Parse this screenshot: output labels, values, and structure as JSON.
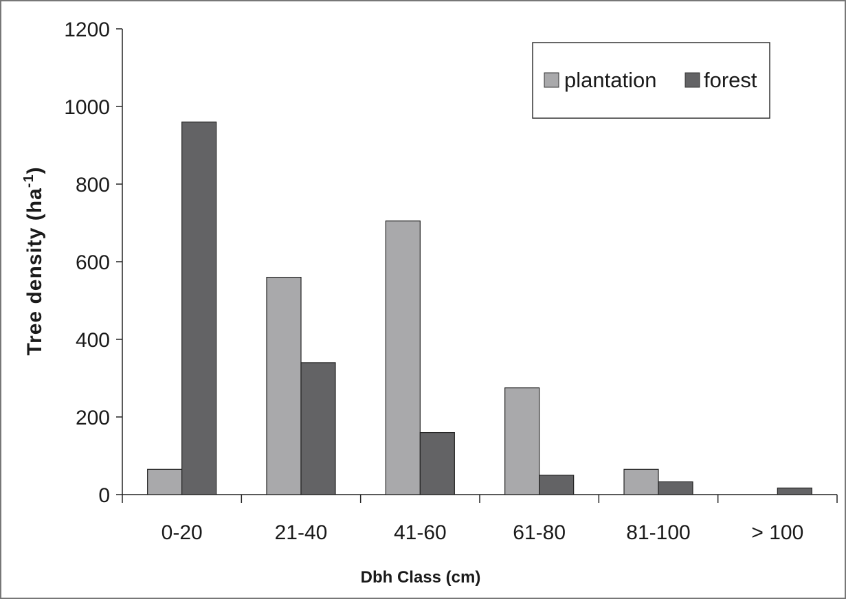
{
  "chart_data": {
    "type": "bar",
    "title": "",
    "xlabel": "Dbh  Class (cm)",
    "ylabel": {
      "main": "Tree density  (ha",
      "superscript": "-1",
      "close": ")"
    },
    "categories": [
      "0-20",
      "21-40",
      "41-60",
      "61-80",
      "81-100",
      "> 100"
    ],
    "series": [
      {
        "name": "plantation",
        "color": "#a9a9ab",
        "values": [
          65,
          560,
          705,
          275,
          65,
          0
        ]
      },
      {
        "name": "forest",
        "color": "#636365",
        "values": [
          960,
          340,
          160,
          50,
          33,
          17
        ]
      }
    ],
    "ylim": [
      0,
      1200
    ],
    "yticks": [
      "0",
      "200",
      "400",
      "600",
      "800",
      "1000",
      "1200"
    ],
    "grid": false,
    "legend": {
      "position": "top-right"
    }
  }
}
